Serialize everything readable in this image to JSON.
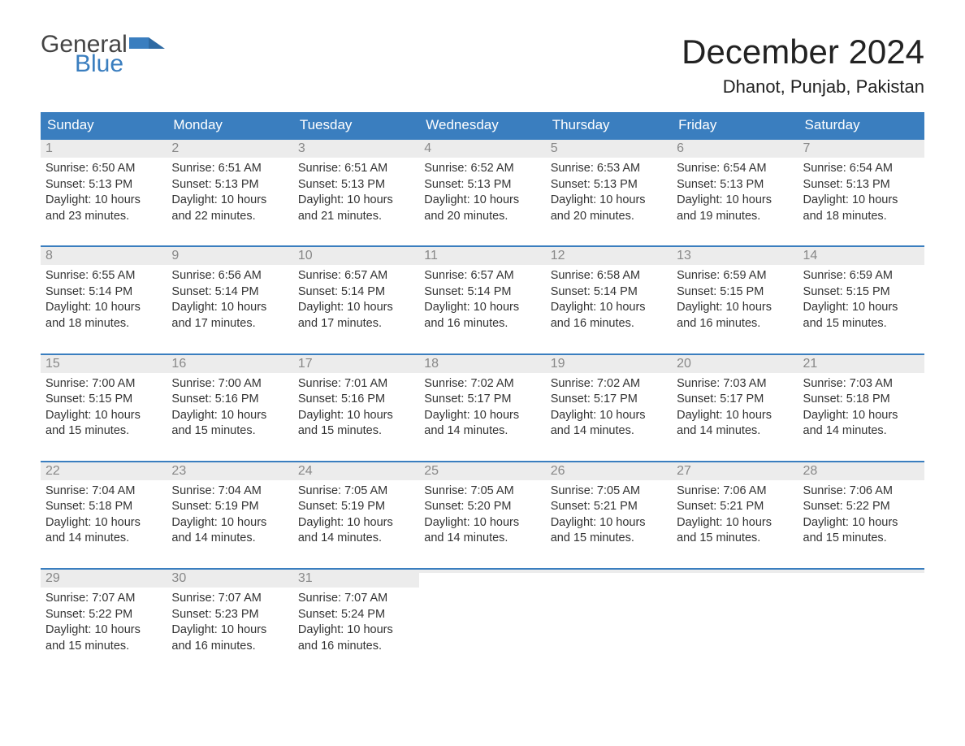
{
  "brand": {
    "general": "General",
    "blue": "Blue",
    "flag_color": "#3a7ebf"
  },
  "title": "December 2024",
  "location": "Dhanot, Punjab, Pakistan",
  "colors": {
    "header_bg": "#3a7ebf",
    "header_text": "#ffffff",
    "week_border": "#3a7ebf",
    "daynum_bg": "#ececec",
    "daynum_text": "#888888",
    "body_text": "#333333",
    "page_bg": "#ffffff"
  },
  "day_labels": [
    "Sunday",
    "Monday",
    "Tuesday",
    "Wednesday",
    "Thursday",
    "Friday",
    "Saturday"
  ],
  "weeks": [
    [
      {
        "n": "1",
        "sr": "Sunrise: 6:50 AM",
        "ss": "Sunset: 5:13 PM",
        "d1": "Daylight: 10 hours",
        "d2": "and 23 minutes."
      },
      {
        "n": "2",
        "sr": "Sunrise: 6:51 AM",
        "ss": "Sunset: 5:13 PM",
        "d1": "Daylight: 10 hours",
        "d2": "and 22 minutes."
      },
      {
        "n": "3",
        "sr": "Sunrise: 6:51 AM",
        "ss": "Sunset: 5:13 PM",
        "d1": "Daylight: 10 hours",
        "d2": "and 21 minutes."
      },
      {
        "n": "4",
        "sr": "Sunrise: 6:52 AM",
        "ss": "Sunset: 5:13 PM",
        "d1": "Daylight: 10 hours",
        "d2": "and 20 minutes."
      },
      {
        "n": "5",
        "sr": "Sunrise: 6:53 AM",
        "ss": "Sunset: 5:13 PM",
        "d1": "Daylight: 10 hours",
        "d2": "and 20 minutes."
      },
      {
        "n": "6",
        "sr": "Sunrise: 6:54 AM",
        "ss": "Sunset: 5:13 PM",
        "d1": "Daylight: 10 hours",
        "d2": "and 19 minutes."
      },
      {
        "n": "7",
        "sr": "Sunrise: 6:54 AM",
        "ss": "Sunset: 5:13 PM",
        "d1": "Daylight: 10 hours",
        "d2": "and 18 minutes."
      }
    ],
    [
      {
        "n": "8",
        "sr": "Sunrise: 6:55 AM",
        "ss": "Sunset: 5:14 PM",
        "d1": "Daylight: 10 hours",
        "d2": "and 18 minutes."
      },
      {
        "n": "9",
        "sr": "Sunrise: 6:56 AM",
        "ss": "Sunset: 5:14 PM",
        "d1": "Daylight: 10 hours",
        "d2": "and 17 minutes."
      },
      {
        "n": "10",
        "sr": "Sunrise: 6:57 AM",
        "ss": "Sunset: 5:14 PM",
        "d1": "Daylight: 10 hours",
        "d2": "and 17 minutes."
      },
      {
        "n": "11",
        "sr": "Sunrise: 6:57 AM",
        "ss": "Sunset: 5:14 PM",
        "d1": "Daylight: 10 hours",
        "d2": "and 16 minutes."
      },
      {
        "n": "12",
        "sr": "Sunrise: 6:58 AM",
        "ss": "Sunset: 5:14 PM",
        "d1": "Daylight: 10 hours",
        "d2": "and 16 minutes."
      },
      {
        "n": "13",
        "sr": "Sunrise: 6:59 AM",
        "ss": "Sunset: 5:15 PM",
        "d1": "Daylight: 10 hours",
        "d2": "and 16 minutes."
      },
      {
        "n": "14",
        "sr": "Sunrise: 6:59 AM",
        "ss": "Sunset: 5:15 PM",
        "d1": "Daylight: 10 hours",
        "d2": "and 15 minutes."
      }
    ],
    [
      {
        "n": "15",
        "sr": "Sunrise: 7:00 AM",
        "ss": "Sunset: 5:15 PM",
        "d1": "Daylight: 10 hours",
        "d2": "and 15 minutes."
      },
      {
        "n": "16",
        "sr": "Sunrise: 7:00 AM",
        "ss": "Sunset: 5:16 PM",
        "d1": "Daylight: 10 hours",
        "d2": "and 15 minutes."
      },
      {
        "n": "17",
        "sr": "Sunrise: 7:01 AM",
        "ss": "Sunset: 5:16 PM",
        "d1": "Daylight: 10 hours",
        "d2": "and 15 minutes."
      },
      {
        "n": "18",
        "sr": "Sunrise: 7:02 AM",
        "ss": "Sunset: 5:17 PM",
        "d1": "Daylight: 10 hours",
        "d2": "and 14 minutes."
      },
      {
        "n": "19",
        "sr": "Sunrise: 7:02 AM",
        "ss": "Sunset: 5:17 PM",
        "d1": "Daylight: 10 hours",
        "d2": "and 14 minutes."
      },
      {
        "n": "20",
        "sr": "Sunrise: 7:03 AM",
        "ss": "Sunset: 5:17 PM",
        "d1": "Daylight: 10 hours",
        "d2": "and 14 minutes."
      },
      {
        "n": "21",
        "sr": "Sunrise: 7:03 AM",
        "ss": "Sunset: 5:18 PM",
        "d1": "Daylight: 10 hours",
        "d2": "and 14 minutes."
      }
    ],
    [
      {
        "n": "22",
        "sr": "Sunrise: 7:04 AM",
        "ss": "Sunset: 5:18 PM",
        "d1": "Daylight: 10 hours",
        "d2": "and 14 minutes."
      },
      {
        "n": "23",
        "sr": "Sunrise: 7:04 AM",
        "ss": "Sunset: 5:19 PM",
        "d1": "Daylight: 10 hours",
        "d2": "and 14 minutes."
      },
      {
        "n": "24",
        "sr": "Sunrise: 7:05 AM",
        "ss": "Sunset: 5:19 PM",
        "d1": "Daylight: 10 hours",
        "d2": "and 14 minutes."
      },
      {
        "n": "25",
        "sr": "Sunrise: 7:05 AM",
        "ss": "Sunset: 5:20 PM",
        "d1": "Daylight: 10 hours",
        "d2": "and 14 minutes."
      },
      {
        "n": "26",
        "sr": "Sunrise: 7:05 AM",
        "ss": "Sunset: 5:21 PM",
        "d1": "Daylight: 10 hours",
        "d2": "and 15 minutes."
      },
      {
        "n": "27",
        "sr": "Sunrise: 7:06 AM",
        "ss": "Sunset: 5:21 PM",
        "d1": "Daylight: 10 hours",
        "d2": "and 15 minutes."
      },
      {
        "n": "28",
        "sr": "Sunrise: 7:06 AM",
        "ss": "Sunset: 5:22 PM",
        "d1": "Daylight: 10 hours",
        "d2": "and 15 minutes."
      }
    ],
    [
      {
        "n": "29",
        "sr": "Sunrise: 7:07 AM",
        "ss": "Sunset: 5:22 PM",
        "d1": "Daylight: 10 hours",
        "d2": "and 15 minutes."
      },
      {
        "n": "30",
        "sr": "Sunrise: 7:07 AM",
        "ss": "Sunset: 5:23 PM",
        "d1": "Daylight: 10 hours",
        "d2": "and 16 minutes."
      },
      {
        "n": "31",
        "sr": "Sunrise: 7:07 AM",
        "ss": "Sunset: 5:24 PM",
        "d1": "Daylight: 10 hours",
        "d2": "and 16 minutes."
      },
      {
        "empty": true
      },
      {
        "empty": true
      },
      {
        "empty": true
      },
      {
        "empty": true
      }
    ]
  ]
}
